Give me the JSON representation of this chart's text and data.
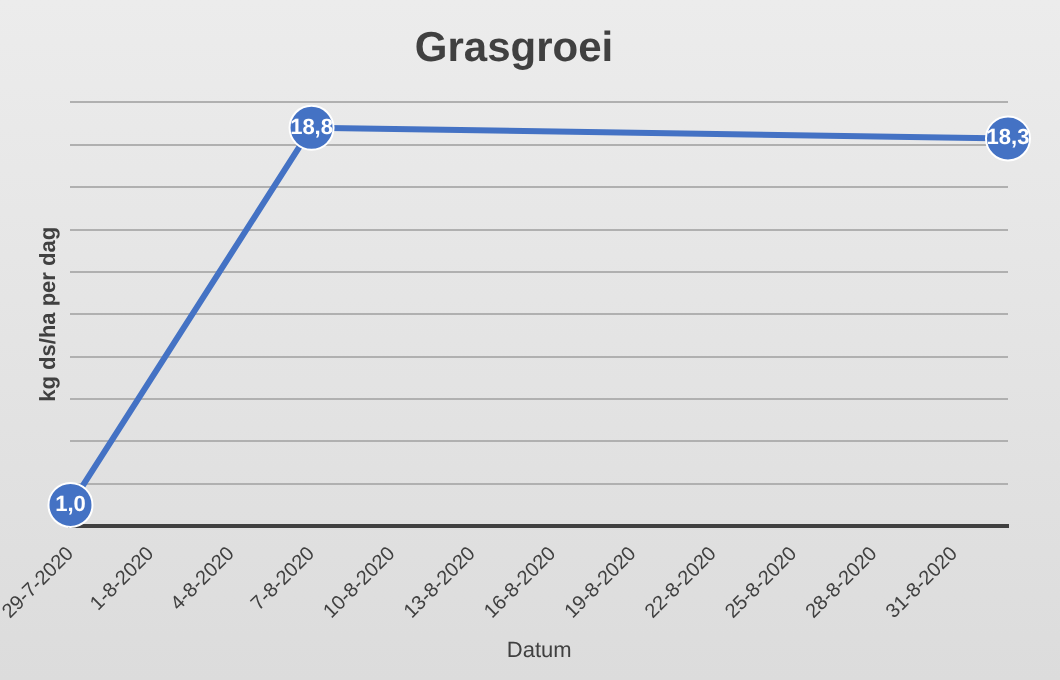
{
  "chart_data": {
    "type": "line",
    "title": "Grasgroei",
    "xlabel": "Datum",
    "ylabel": "kg ds/ha per dag",
    "x": [
      "2020-07-29",
      "2020-08-07",
      "2020-09-02"
    ],
    "series": [
      {
        "color": "#4472c4",
        "values": [
          1.0,
          18.8,
          18.3
        ],
        "value_labels": [
          "1,0",
          "18,8",
          "18,3"
        ]
      }
    ],
    "xlim": [
      "2020-07-29",
      "2020-09-02"
    ],
    "xticks": [
      {
        "value": "2020-07-29",
        "label": "29-7-2020"
      },
      {
        "value": "2020-08-01",
        "label": "1-8-2020"
      },
      {
        "value": "2020-08-04",
        "label": "4-8-2020"
      },
      {
        "value": "2020-08-07",
        "label": "7-8-2020"
      },
      {
        "value": "2020-08-10",
        "label": "10-8-2020"
      },
      {
        "value": "2020-08-13",
        "label": "13-8-2020"
      },
      {
        "value": "2020-08-16",
        "label": "16-8-2020"
      },
      {
        "value": "2020-08-19",
        "label": "19-8-2020"
      },
      {
        "value": "2020-08-22",
        "label": "22-8-2020"
      },
      {
        "value": "2020-08-25",
        "label": "25-8-2020"
      },
      {
        "value": "2020-08-28",
        "label": "28-8-2020"
      },
      {
        "value": "2020-08-31",
        "label": "31-8-2020"
      }
    ],
    "ylim": [
      0,
      20
    ],
    "yticks": [
      0,
      2,
      4,
      6,
      8,
      10,
      12,
      14,
      16,
      18,
      20
    ],
    "tick_labels": "x",
    "grid": "y",
    "legend": false,
    "marker": "circle",
    "line_style": "solid"
  }
}
